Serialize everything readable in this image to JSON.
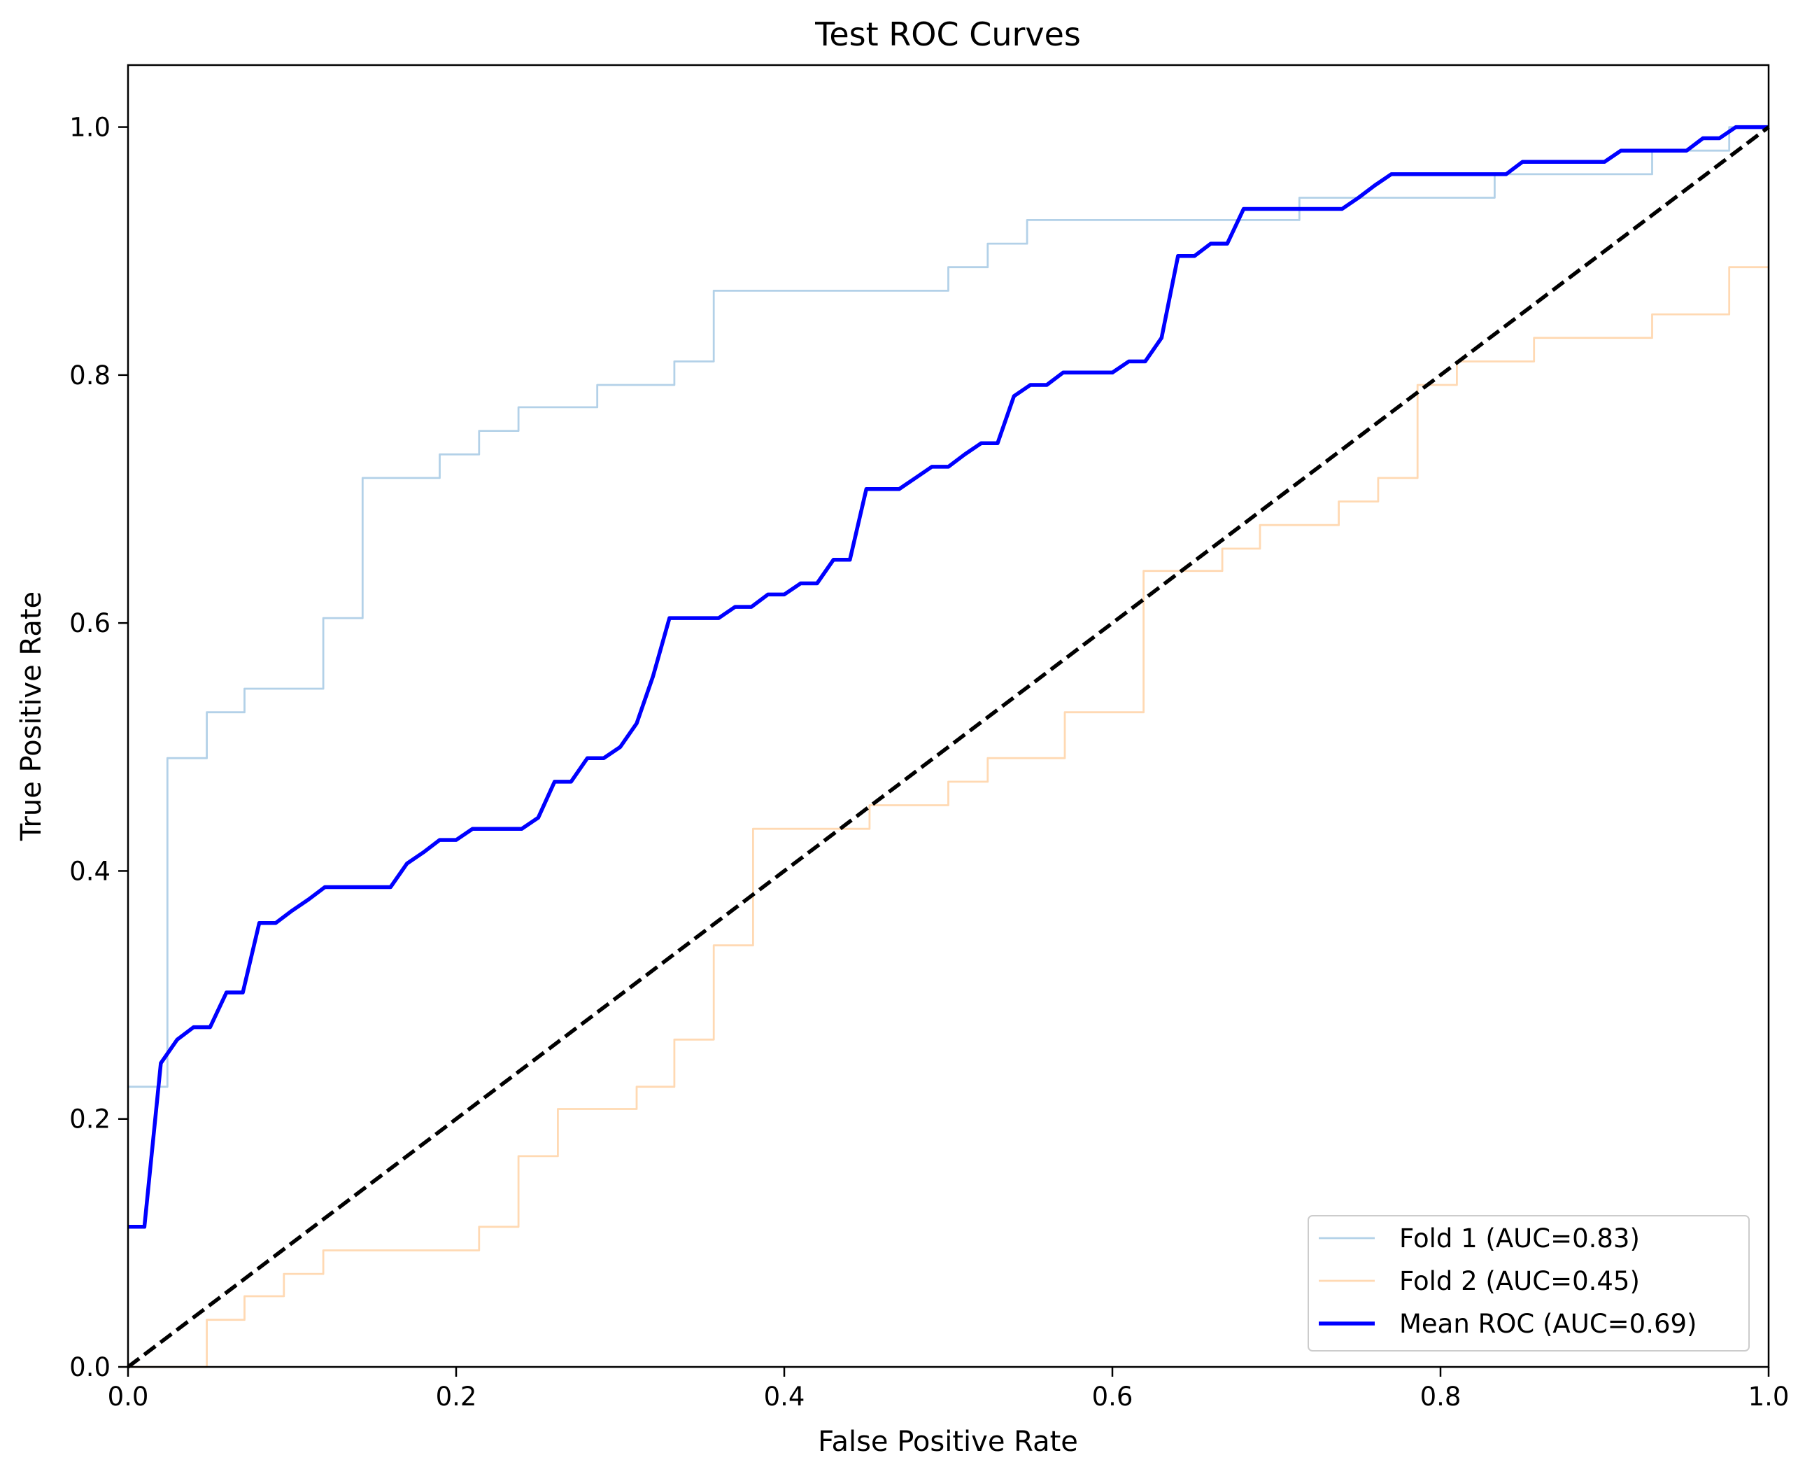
{
  "chart_data": {
    "type": "line",
    "title": "Test ROC Curves",
    "xlabel": "False Positive Rate",
    "ylabel": "True Positive Rate",
    "xlim": [
      0,
      1
    ],
    "ylim": [
      0,
      1.05
    ],
    "xticks": [
      "0.0",
      "0.2",
      "0.4",
      "0.6",
      "0.8",
      "1.0"
    ],
    "yticks": [
      "0.0",
      "0.2",
      "0.4",
      "0.6",
      "0.8",
      "1.0"
    ],
    "grid": false,
    "legend_position": "lower-right",
    "series": [
      {
        "name": "Fold 1 (AUC=0.83)",
        "color": "#b3d1e8",
        "style": "step",
        "x": [
          0,
          0.024,
          0.024,
          0.048,
          0.048,
          0.071,
          0.071,
          0.119,
          0.119,
          0.143,
          0.143,
          0.19,
          0.19,
          0.214,
          0.214,
          0.238,
          0.238,
          0.286,
          0.286,
          0.333,
          0.333,
          0.357,
          0.357,
          0.5,
          0.5,
          0.524,
          0.524,
          0.548,
          0.548,
          0.714,
          0.714,
          0.833,
          0.833,
          0.929,
          0.929,
          0.976,
          0.976,
          1.0
        ],
        "y": [
          0.226,
          0.226,
          0.491,
          0.491,
          0.528,
          0.528,
          0.547,
          0.547,
          0.604,
          0.604,
          0.717,
          0.717,
          0.736,
          0.736,
          0.755,
          0.755,
          0.774,
          0.774,
          0.792,
          0.792,
          0.811,
          0.811,
          0.868,
          0.868,
          0.887,
          0.887,
          0.906,
          0.906,
          0.925,
          0.925,
          0.943,
          0.943,
          0.962,
          0.962,
          0.981,
          0.981,
          1.0,
          1.0
        ]
      },
      {
        "name": "Fold 2 (AUC=0.45)",
        "color": "#ffd9b3",
        "style": "step",
        "x": [
          0,
          0.048,
          0.048,
          0.071,
          0.071,
          0.095,
          0.095,
          0.119,
          0.119,
          0.214,
          0.214,
          0.238,
          0.238,
          0.262,
          0.262,
          0.31,
          0.31,
          0.333,
          0.333,
          0.357,
          0.357,
          0.381,
          0.381,
          0.452,
          0.452,
          0.5,
          0.5,
          0.524,
          0.524,
          0.571,
          0.571,
          0.619,
          0.619,
          0.667,
          0.667,
          0.69,
          0.69,
          0.738,
          0.738,
          0.762,
          0.762,
          0.786,
          0.786,
          0.81,
          0.81,
          0.857,
          0.857,
          0.929,
          0.929,
          0.976,
          0.976,
          1.0
        ],
        "y": [
          0,
          0,
          0.038,
          0.038,
          0.057,
          0.057,
          0.075,
          0.075,
          0.094,
          0.094,
          0.113,
          0.113,
          0.17,
          0.17,
          0.208,
          0.208,
          0.226,
          0.226,
          0.264,
          0.264,
          0.34,
          0.34,
          0.434,
          0.434,
          0.453,
          0.453,
          0.472,
          0.472,
          0.491,
          0.491,
          0.528,
          0.528,
          0.642,
          0.642,
          0.66,
          0.66,
          0.679,
          0.679,
          0.698,
          0.698,
          0.717,
          0.717,
          0.792,
          0.792,
          0.811,
          0.811,
          0.83,
          0.83,
          0.849,
          0.849,
          0.887,
          0.887
        ]
      },
      {
        "name": "Mean ROC (AUC=0.69)",
        "color": "#0000ff",
        "style": "line",
        "x": [
          0,
          0.01,
          0.02,
          0.03,
          0.04,
          0.05,
          0.06,
          0.07,
          0.08,
          0.09,
          0.1,
          0.11,
          0.12,
          0.13,
          0.14,
          0.15,
          0.16,
          0.17,
          0.18,
          0.19,
          0.2,
          0.21,
          0.22,
          0.23,
          0.24,
          0.25,
          0.26,
          0.27,
          0.28,
          0.29,
          0.3,
          0.31,
          0.32,
          0.33,
          0.34,
          0.35,
          0.36,
          0.37,
          0.38,
          0.39,
          0.4,
          0.41,
          0.42,
          0.43,
          0.44,
          0.45,
          0.46,
          0.47,
          0.48,
          0.49,
          0.5,
          0.51,
          0.52,
          0.53,
          0.54,
          0.55,
          0.56,
          0.57,
          0.58,
          0.59,
          0.6,
          0.61,
          0.62,
          0.63,
          0.64,
          0.65,
          0.66,
          0.67,
          0.68,
          0.69,
          0.7,
          0.71,
          0.72,
          0.73,
          0.74,
          0.75,
          0.76,
          0.77,
          0.78,
          0.79,
          0.8,
          0.81,
          0.82,
          0.83,
          0.84,
          0.85,
          0.86,
          0.87,
          0.88,
          0.89,
          0.9,
          0.91,
          0.92,
          0.93,
          0.94,
          0.95,
          0.96,
          0.97,
          0.98,
          0.99,
          1.0
        ],
        "y": [
          0.113,
          0.113,
          0.245,
          0.264,
          0.274,
          0.274,
          0.302,
          0.302,
          0.358,
          0.358,
          0.368,
          0.377,
          0.387,
          0.387,
          0.387,
          0.387,
          0.387,
          0.406,
          0.415,
          0.425,
          0.425,
          0.434,
          0.434,
          0.434,
          0.434,
          0.443,
          0.472,
          0.472,
          0.491,
          0.491,
          0.5,
          0.519,
          0.557,
          0.604,
          0.604,
          0.604,
          0.604,
          0.613,
          0.613,
          0.623,
          0.623,
          0.632,
          0.632,
          0.651,
          0.651,
          0.708,
          0.708,
          0.708,
          0.717,
          0.726,
          0.726,
          0.736,
          0.745,
          0.745,
          0.783,
          0.792,
          0.792,
          0.802,
          0.802,
          0.802,
          0.802,
          0.811,
          0.811,
          0.83,
          0.896,
          0.896,
          0.906,
          0.906,
          0.934,
          0.934,
          0.934,
          0.934,
          0.934,
          0.934,
          0.934,
          0.943,
          0.953,
          0.962,
          0.962,
          0.962,
          0.962,
          0.962,
          0.962,
          0.962,
          0.962,
          0.972,
          0.972,
          0.972,
          0.972,
          0.972,
          0.972,
          0.981,
          0.981,
          0.981,
          0.981,
          0.981,
          0.991,
          0.991,
          1.0,
          1.0,
          1.0
        ]
      },
      {
        "name": "",
        "color": "#000000",
        "style": "dashed",
        "x": [
          0,
          1
        ],
        "y": [
          0,
          1
        ]
      }
    ]
  }
}
